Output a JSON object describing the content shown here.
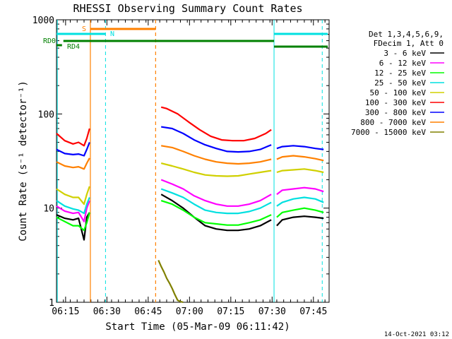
{
  "chart_data": {
    "type": "line",
    "title": "RHESSI Observing Summary Count Rates",
    "xlabel": "Start Time (05-Mar-09 06:11:42)",
    "ylabel": "Count Rate (s⁻¹ detector⁻¹)",
    "yscale": "log",
    "ylim": [
      1,
      1000
    ],
    "xlim_minutes": [
      0,
      99
    ],
    "x_tick_labels": [
      "06:15",
      "06:30",
      "06:45",
      "07:00",
      "07:15",
      "07:30",
      "07:45"
    ],
    "x_tick_minutes": [
      3.3,
      18.3,
      33.3,
      48.3,
      63.3,
      78.3,
      93.3
    ],
    "y_tick_labels": [
      "1",
      "10",
      "100",
      "1000"
    ],
    "y_tick_values": [
      1,
      10,
      100,
      1000
    ],
    "legend_title": [
      "Det 1,3,4,5,6,9,",
      "FDecim 1, Att 0"
    ],
    "legend_position": "right",
    "footer_date": "14-Oct-2021 03:12",
    "flag_labels": {
      "S": "S",
      "N": "N",
      "RD0": "RD0",
      "RD4": "RD4"
    },
    "flags": {
      "saa_color": "#ff8000",
      "night_color": "#00e0e0",
      "rd0_color": "#008000",
      "rd4_color": "#008000",
      "saa_vlines": [
        12.3,
        36.0
      ],
      "night_vlines": [
        0.3,
        17.8,
        79.0,
        96.5
      ],
      "night_dash": [
        false,
        true,
        false,
        true
      ],
      "saa_dash": [
        false,
        true
      ]
    },
    "series": [
      {
        "name": "3 - 6 keV",
        "color": "#000000",
        "values": [
          [
            0,
            8.5
          ],
          [
            3,
            7.8
          ],
          [
            6,
            7.5
          ],
          [
            8,
            7.8
          ],
          [
            10,
            4.6
          ],
          [
            11,
            8
          ],
          [
            12,
            9
          ],
          [
            36,
            null
          ],
          [
            38,
            14
          ],
          [
            42,
            12
          ],
          [
            46,
            10
          ],
          [
            50,
            8
          ],
          [
            54,
            6.5
          ],
          [
            58,
            6
          ],
          [
            62,
            5.8
          ],
          [
            66,
            5.8
          ],
          [
            70,
            6
          ],
          [
            74,
            6.5
          ],
          [
            78,
            7.5
          ],
          [
            79,
            null
          ],
          [
            80,
            6.5
          ],
          [
            82,
            7.5
          ],
          [
            86,
            8
          ],
          [
            90,
            8.2
          ],
          [
            94,
            8
          ],
          [
            97,
            7.8
          ]
        ]
      },
      {
        "name": "6 - 12 keV",
        "color": "#ff00ff",
        "values": [
          [
            0,
            10.5
          ],
          [
            3,
            9.3
          ],
          [
            6,
            8.8
          ],
          [
            8,
            9
          ],
          [
            10,
            7.2
          ],
          [
            11,
            10
          ],
          [
            12,
            12
          ],
          [
            36,
            null
          ],
          [
            38,
            20
          ],
          [
            42,
            18
          ],
          [
            46,
            16
          ],
          [
            50,
            13.5
          ],
          [
            54,
            12
          ],
          [
            58,
            11
          ],
          [
            62,
            10.5
          ],
          [
            66,
            10.5
          ],
          [
            70,
            11
          ],
          [
            74,
            12
          ],
          [
            78,
            14
          ],
          [
            79,
            null
          ],
          [
            80,
            14
          ],
          [
            82,
            15.5
          ],
          [
            86,
            16
          ],
          [
            90,
            16.5
          ],
          [
            94,
            16
          ],
          [
            97,
            15
          ]
        ]
      },
      {
        "name": "12 - 25 keV",
        "color": "#00ff00",
        "values": [
          [
            0,
            8
          ],
          [
            3,
            7.2
          ],
          [
            6,
            6.5
          ],
          [
            8,
            6.5
          ],
          [
            10,
            5.8
          ],
          [
            11,
            7
          ],
          [
            12,
            9
          ],
          [
            36,
            null
          ],
          [
            38,
            12
          ],
          [
            42,
            11
          ],
          [
            46,
            9.5
          ],
          [
            50,
            8
          ],
          [
            54,
            7
          ],
          [
            58,
            6.8
          ],
          [
            62,
            6.6
          ],
          [
            66,
            6.6
          ],
          [
            70,
            7
          ],
          [
            74,
            7.5
          ],
          [
            78,
            8.5
          ],
          [
            79,
            null
          ],
          [
            80,
            8
          ],
          [
            82,
            9
          ],
          [
            86,
            9.5
          ],
          [
            90,
            10
          ],
          [
            94,
            9.5
          ],
          [
            97,
            9
          ]
        ]
      },
      {
        "name": "25 - 50 keV",
        "color": "#00e0e0",
        "values": [
          [
            0,
            12
          ],
          [
            3,
            10.5
          ],
          [
            6,
            9.8
          ],
          [
            8,
            9.5
          ],
          [
            10,
            8.8
          ],
          [
            11,
            11
          ],
          [
            12,
            13
          ],
          [
            36,
            null
          ],
          [
            38,
            16
          ],
          [
            42,
            14.5
          ],
          [
            46,
            13
          ],
          [
            50,
            11
          ],
          [
            54,
            9.5
          ],
          [
            58,
            9
          ],
          [
            62,
            8.8
          ],
          [
            66,
            8.8
          ],
          [
            70,
            9.2
          ],
          [
            74,
            10
          ],
          [
            78,
            11.5
          ],
          [
            79,
            null
          ],
          [
            80,
            10.5
          ],
          [
            82,
            11.5
          ],
          [
            86,
            12.5
          ],
          [
            90,
            13
          ],
          [
            94,
            12.5
          ],
          [
            97,
            11.5
          ]
        ]
      },
      {
        "name": "50 - 100 keV",
        "color": "#d0d000",
        "values": [
          [
            0,
            16
          ],
          [
            3,
            14
          ],
          [
            6,
            13
          ],
          [
            8,
            13
          ],
          [
            10,
            11
          ],
          [
            11,
            14
          ],
          [
            12,
            17
          ],
          [
            36,
            null
          ],
          [
            38,
            30
          ],
          [
            42,
            28
          ],
          [
            46,
            26
          ],
          [
            50,
            24
          ],
          [
            54,
            22.5
          ],
          [
            58,
            22
          ],
          [
            62,
            21.8
          ],
          [
            66,
            22
          ],
          [
            70,
            23
          ],
          [
            74,
            24
          ],
          [
            78,
            25
          ],
          [
            79,
            null
          ],
          [
            80,
            24
          ],
          [
            82,
            25
          ],
          [
            86,
            25.5
          ],
          [
            90,
            26
          ],
          [
            94,
            25
          ],
          [
            97,
            24
          ]
        ]
      },
      {
        "name": "100 - 300 keV",
        "color": "#ff0000",
        "values": [
          [
            0,
            62
          ],
          [
            3,
            52
          ],
          [
            6,
            48
          ],
          [
            8,
            50
          ],
          [
            10,
            46
          ],
          [
            11,
            55
          ],
          [
            12,
            70
          ],
          [
            36,
            null
          ],
          [
            38,
            118
          ],
          [
            40,
            114
          ],
          [
            44,
            100
          ],
          [
            48,
            82
          ],
          [
            52,
            68
          ],
          [
            56,
            58
          ],
          [
            60,
            53
          ],
          [
            64,
            52
          ],
          [
            68,
            52
          ],
          [
            72,
            55
          ],
          [
            76,
            62
          ],
          [
            78,
            68
          ],
          [
            79,
            null
          ]
        ]
      },
      {
        "name": "300 - 800 keV",
        "color": "#0000ff",
        "values": [
          [
            0,
            42
          ],
          [
            3,
            38
          ],
          [
            6,
            37
          ],
          [
            8,
            37.5
          ],
          [
            10,
            36
          ],
          [
            11,
            42
          ],
          [
            12,
            50
          ],
          [
            36,
            null
          ],
          [
            38,
            73
          ],
          [
            42,
            70
          ],
          [
            46,
            62
          ],
          [
            50,
            53
          ],
          [
            54,
            47
          ],
          [
            58,
            43
          ],
          [
            62,
            40
          ],
          [
            66,
            39.5
          ],
          [
            70,
            40
          ],
          [
            74,
            42
          ],
          [
            78,
            47
          ],
          [
            79,
            null
          ],
          [
            80,
            43
          ],
          [
            82,
            45
          ],
          [
            86,
            46
          ],
          [
            90,
            45
          ],
          [
            94,
            43
          ],
          [
            97,
            42
          ]
        ]
      },
      {
        "name": "800 - 7000 keV",
        "color": "#ff8000",
        "values": [
          [
            0,
            31
          ],
          [
            3,
            28
          ],
          [
            6,
            27
          ],
          [
            8,
            27.5
          ],
          [
            10,
            26
          ],
          [
            11,
            30
          ],
          [
            12,
            34
          ],
          [
            36,
            null
          ],
          [
            38,
            46
          ],
          [
            42,
            44
          ],
          [
            46,
            40
          ],
          [
            50,
            36
          ],
          [
            54,
            33
          ],
          [
            58,
            31
          ],
          [
            62,
            30
          ],
          [
            66,
            29.5
          ],
          [
            70,
            30
          ],
          [
            74,
            31
          ],
          [
            78,
            33
          ],
          [
            79,
            null
          ],
          [
            80,
            33
          ],
          [
            82,
            35
          ],
          [
            86,
            36
          ],
          [
            90,
            35
          ],
          [
            94,
            33.5
          ],
          [
            97,
            32
          ]
        ]
      },
      {
        "name": "7000 - 15000 keV",
        "color": "#808000",
        "values": [
          [
            36,
            null
          ],
          [
            37,
            2.8
          ],
          [
            38,
            2.4
          ],
          [
            39,
            2.1
          ],
          [
            40,
            1.8
          ],
          [
            41,
            1.6
          ],
          [
            42,
            1.4
          ],
          [
            43,
            1.2
          ],
          [
            44,
            1.05
          ],
          [
            45,
            1.02
          ],
          [
            46,
            1.0
          ]
        ]
      }
    ]
  }
}
